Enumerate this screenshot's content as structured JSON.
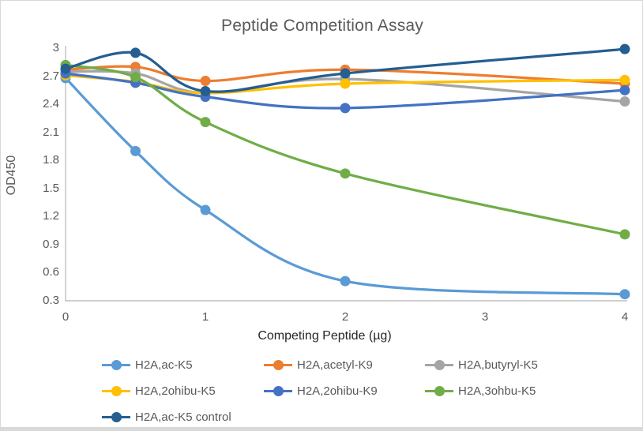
{
  "title": "Peptide Competition Assay",
  "axes": {
    "x": {
      "label": "Competing Peptide (µg)",
      "ticks": [
        "0",
        "1",
        "2",
        "3",
        "4"
      ]
    },
    "y": {
      "label": "OD450",
      "ticks": [
        "3",
        "2.7",
        "2.4",
        "2.1",
        "1.8",
        "1.5",
        "1.2",
        "0.9",
        "0.6",
        "0.3"
      ]
    }
  },
  "chart_data": {
    "type": "line",
    "title": "Peptide Competition Assay",
    "xlabel": "Competing Peptide (µg)",
    "ylabel": "OD450",
    "x": [
      0,
      0.5,
      1,
      2,
      4
    ],
    "xlim": [
      0,
      4
    ],
    "ylim": [
      0.3,
      3
    ],
    "grid": false,
    "smooth": true,
    "legend_position": "bottom",
    "series": [
      {
        "name": "H2A,ac-K5",
        "color": "#5B9BD5",
        "values": [
          2.68,
          1.9,
          1.27,
          0.51,
          0.37
        ]
      },
      {
        "name": "H2A,acetyl-K9",
        "color": "#ED7D31",
        "values": [
          2.77,
          2.8,
          2.65,
          2.77,
          2.62
        ]
      },
      {
        "name": "H2A,butyryl-K5",
        "color": "#A5A5A5",
        "values": [
          2.75,
          2.73,
          2.52,
          2.67,
          2.43
        ]
      },
      {
        "name": "H2A,2ohibu-K5",
        "color": "#FFC000",
        "values": [
          2.71,
          2.64,
          2.52,
          2.62,
          2.66
        ]
      },
      {
        "name": "H2A,2ohibu-K9",
        "color": "#4472C4",
        "values": [
          2.73,
          2.63,
          2.48,
          2.36,
          2.55
        ]
      },
      {
        "name": "H2A,3ohbu-K5",
        "color": "#70AD47",
        "values": [
          2.82,
          2.69,
          2.21,
          1.66,
          1.01
        ]
      },
      {
        "name": "H2A,ac-K5 control",
        "color": "#255E91",
        "values": [
          2.78,
          2.95,
          2.54,
          2.73,
          2.99
        ]
      }
    ]
  },
  "style": {
    "axis_line_color": "#BFBFBF",
    "background": "#FFFFFF",
    "border_color": "#D9D9D9"
  }
}
